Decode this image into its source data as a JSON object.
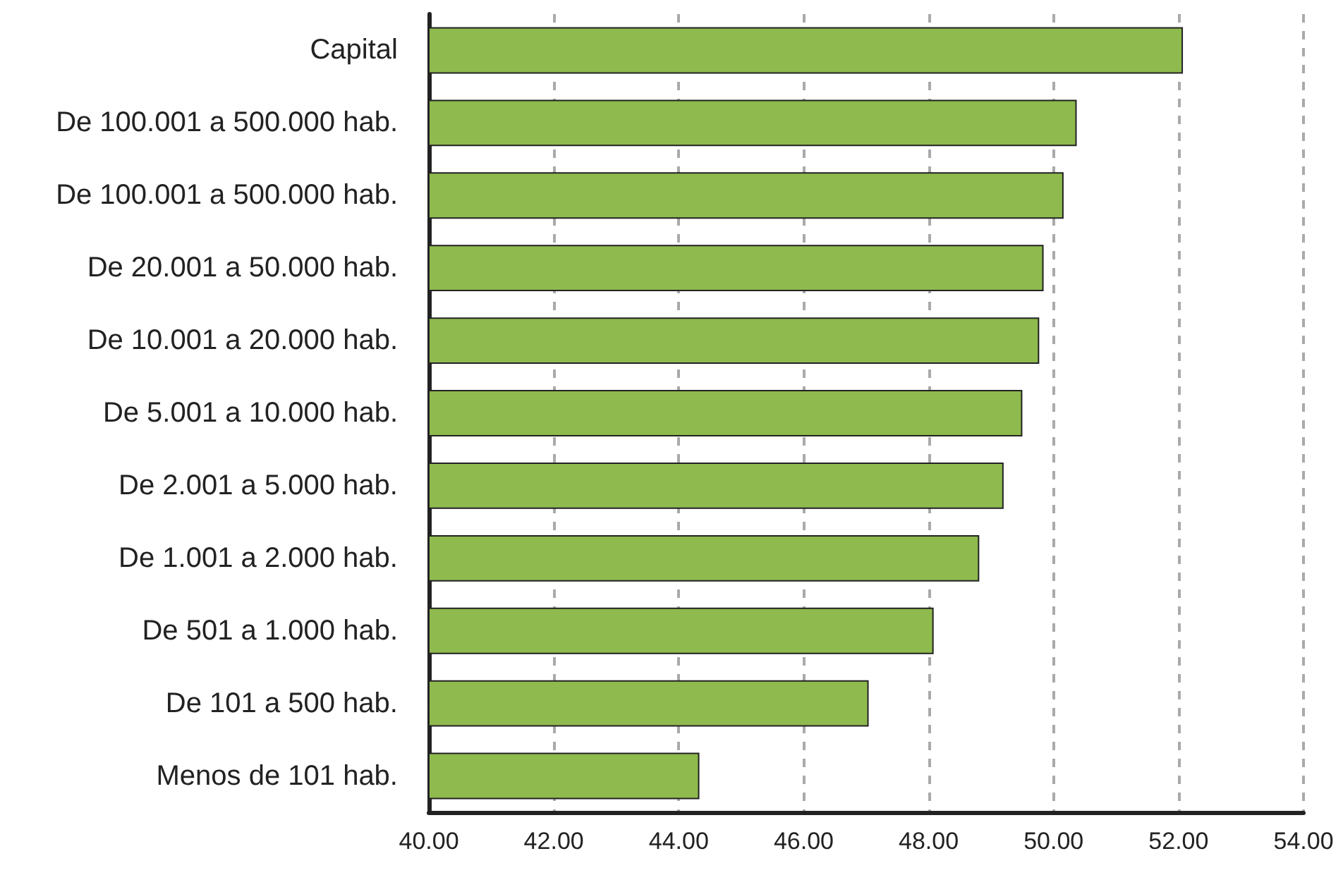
{
  "chart_data": {
    "type": "bar",
    "orientation": "horizontal",
    "categories": [
      "Capital",
      "De 100.001 a 500.000 hab.",
      "De 100.001 a 500.000 hab.",
      "De 20.001 a 50.000 hab.",
      "De 10.001 a 20.000 hab.",
      "De 5.001 a 10.000 hab.",
      "De 2.001 a 5.000 hab.",
      "De 1.001 a 2.000 hab.",
      "De 501 a 1.000 hab.",
      "De 101 a 500 hab.",
      "Menos de 101 hab."
    ],
    "values": [
      52.07,
      50.37,
      50.16,
      49.84,
      49.77,
      49.5,
      49.2,
      48.81,
      48.08,
      47.04,
      44.33
    ],
    "color": "#8fba4e",
    "xlim": [
      40,
      54
    ],
    "xticks": [
      {
        "value": 40,
        "label": "40.00"
      },
      {
        "value": 42,
        "label": "42.00"
      },
      {
        "value": 44,
        "label": "44.00"
      },
      {
        "value": 46,
        "label": "46.00"
      },
      {
        "value": 48,
        "label": "48.00"
      },
      {
        "value": 50,
        "label": "50.00"
      },
      {
        "value": 52,
        "label": "52.00"
      },
      {
        "value": 54,
        "label": "54.00"
      }
    ],
    "grid": "x"
  }
}
